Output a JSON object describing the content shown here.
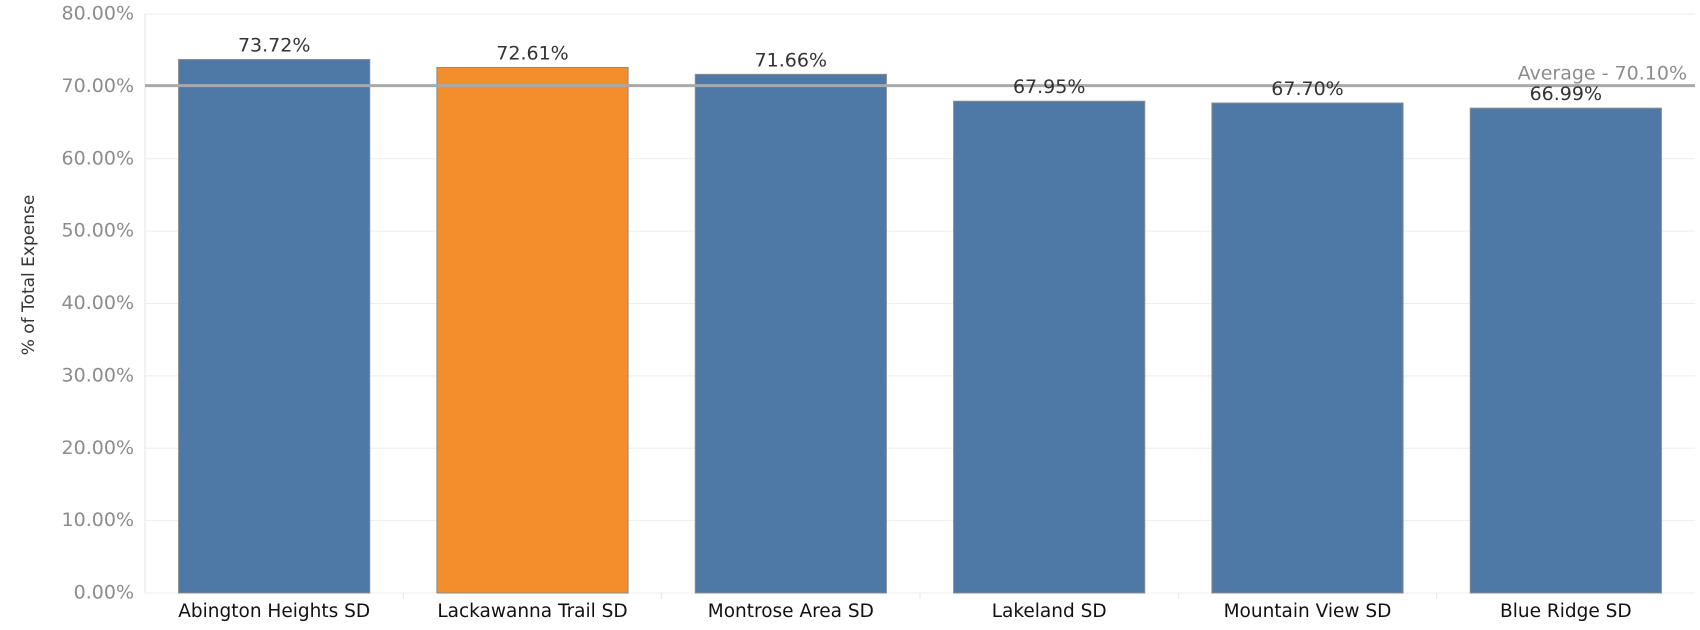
{
  "chart_data": {
    "type": "bar",
    "categories": [
      "Abington Heights SD",
      "Lackawanna Trail SD",
      "Montrose Area SD",
      "Lakeland SD",
      "Mountain View SD",
      "Blue Ridge SD"
    ],
    "values": [
      73.72,
      72.61,
      71.66,
      67.95,
      67.7,
      66.99
    ],
    "value_labels": [
      "73.72%",
      "72.61%",
      "71.66%",
      "67.95%",
      "67.70%",
      "66.99%"
    ],
    "highlight_index": 1,
    "colors": {
      "default_bar": "#4e79a7",
      "highlight_bar": "#f28e2b",
      "bar_stroke": "#8a8a8a",
      "grid": "#eeeeee",
      "axis": "#e6e6e6",
      "reference_line": "#a9a9a9",
      "tick_text": "#8c8c8c",
      "value_label_text": "#333333",
      "category_text": "#111111",
      "ylabel_text": "#333333"
    },
    "ylabel": "% of Total Expense",
    "xlabel": "",
    "title": "",
    "ylim": [
      0,
      80
    ],
    "yticks": [
      0,
      10,
      20,
      30,
      40,
      50,
      60,
      70,
      80
    ],
    "ytick_labels": [
      "0.00%",
      "10.00%",
      "20.00%",
      "30.00%",
      "40.00%",
      "50.00%",
      "60.00%",
      "70.00%",
      "80.00%"
    ],
    "reference_line": {
      "value": 70.1,
      "label": "Average - 70.10%"
    },
    "grid": true
  }
}
